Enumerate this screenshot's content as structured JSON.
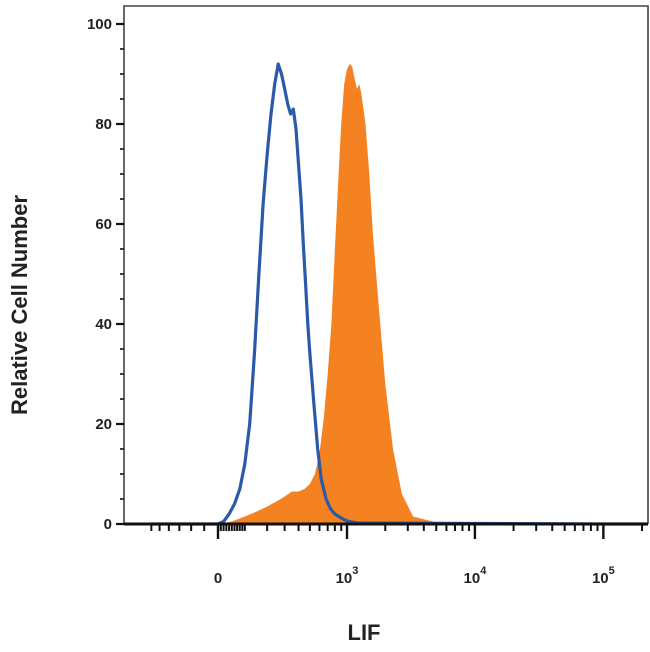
{
  "chart_data": {
    "type": "area",
    "xlabel": "LIF",
    "ylabel": "Relative Cell Number",
    "x_scale": "biexponential",
    "x_ticks": [
      {
        "value": 0,
        "base": "0",
        "exp": ""
      },
      {
        "value": 1000,
        "base": "10",
        "exp": "3"
      },
      {
        "value": 10000,
        "base": "10",
        "exp": "4"
      },
      {
        "value": 100000,
        "base": "10",
        "exp": "5"
      }
    ],
    "xlim": [
      -300,
      300000
    ],
    "ylim": [
      0,
      100
    ],
    "y_ticks": [
      "0",
      "20",
      "40",
      "60",
      "80",
      "100"
    ],
    "legend": "none",
    "grid": false,
    "series": [
      {
        "style": "filled",
        "color": "#F58220",
        "x": [
          -300,
          0,
          50,
          100,
          150,
          200,
          250,
          300,
          350,
          400,
          450,
          500,
          550,
          600,
          650,
          700,
          750,
          800,
          850,
          900,
          950,
          1000,
          1050,
          1100,
          1150,
          1200,
          1250,
          1300,
          1400,
          1500,
          1600,
          1800,
          2000,
          2300,
          2700,
          3300,
          5000,
          100000,
          300000
        ],
        "y": [
          0,
          0,
          0.5,
          1.5,
          2.5,
          3.5,
          4.5,
          5.5,
          6.5,
          6.5,
          7,
          8,
          10,
          14,
          21,
          30,
          40,
          55,
          68,
          80,
          88,
          91,
          92,
          91.5,
          89,
          87,
          88,
          86,
          80,
          70,
          58,
          42,
          28,
          15,
          6,
          1.5,
          0.3,
          0,
          0
        ]
      },
      {
        "style": "outline",
        "color": "#2A5AA8",
        "x": [
          -300,
          0,
          20,
          40,
          60,
          80,
          100,
          120,
          140,
          160,
          180,
          200,
          220,
          240,
          260,
          280,
          300,
          320,
          340,
          360,
          380,
          400,
          420,
          440,
          460,
          480,
          500,
          540,
          580,
          620,
          680,
          740,
          800,
          900,
          1000,
          1200,
          100000,
          300000
        ],
        "y": [
          0,
          0,
          0.5,
          2,
          4,
          7,
          12,
          20,
          34,
          50,
          64,
          74,
          82,
          88,
          92,
          90,
          87,
          84,
          82,
          83,
          79,
          72,
          65,
          56,
          48,
          40,
          34,
          24,
          15,
          9,
          5,
          3,
          2,
          1.2,
          0.6,
          0.2,
          0,
          0
        ]
      }
    ]
  }
}
